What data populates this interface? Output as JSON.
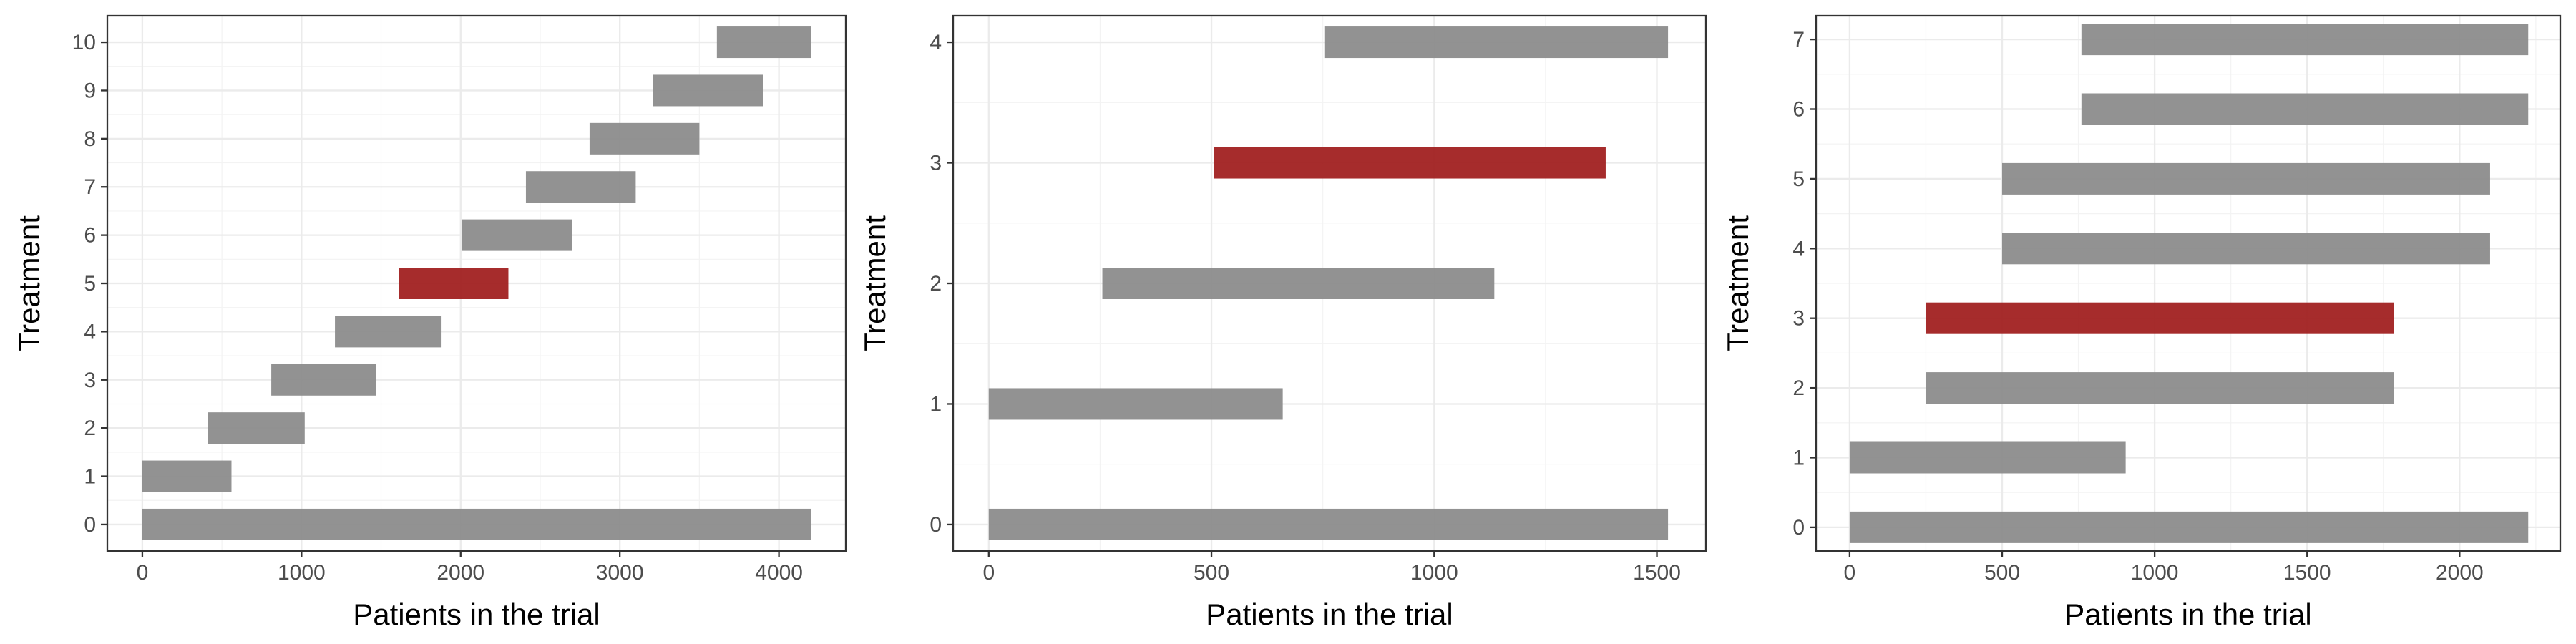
{
  "colors": {
    "default_bar": "#8c8c8c",
    "highlight_bar": "#9e1a1a"
  },
  "chart_data": [
    {
      "type": "bar",
      "orientation": "horizontal-range",
      "title": "",
      "xlabel": "Patients in the trial",
      "ylabel": "Treatment",
      "xlim": [
        -220,
        4420
      ],
      "ylim": [
        -0.55,
        10.55
      ],
      "xticks": [
        0,
        1000,
        2000,
        3000,
        4000
      ],
      "xtick_labels": [
        "0",
        "1000",
        "2000",
        "3000",
        "4000"
      ],
      "grid": true,
      "highlight": 5,
      "bars": [
        {
          "treatment": "0",
          "y": 0,
          "start": 0,
          "end": 4200
        },
        {
          "treatment": "1",
          "y": 1,
          "start": 0,
          "end": 560
        },
        {
          "treatment": "2",
          "y": 2,
          "start": 410,
          "end": 1020
        },
        {
          "treatment": "3",
          "y": 3,
          "start": 810,
          "end": 1470
        },
        {
          "treatment": "4",
          "y": 4,
          "start": 1210,
          "end": 1880
        },
        {
          "treatment": "5",
          "y": 5,
          "start": 1610,
          "end": 2300
        },
        {
          "treatment": "6",
          "y": 6,
          "start": 2010,
          "end": 2700
        },
        {
          "treatment": "7",
          "y": 7,
          "start": 2410,
          "end": 3100
        },
        {
          "treatment": "8",
          "y": 8,
          "start": 2810,
          "end": 3500
        },
        {
          "treatment": "9",
          "y": 9,
          "start": 3210,
          "end": 3900
        },
        {
          "treatment": "10",
          "y": 10,
          "start": 3610,
          "end": 4200
        }
      ]
    },
    {
      "type": "bar",
      "orientation": "horizontal-range",
      "title": "",
      "xlabel": "Patients in the trial",
      "ylabel": "Treatment",
      "xlim": [
        -80,
        1610
      ],
      "ylim": [
        -0.22,
        4.22
      ],
      "xticks": [
        0,
        500,
        1000,
        1500
      ],
      "xtick_labels": [
        "0",
        "500",
        "1000",
        "1500"
      ],
      "grid": true,
      "highlight": 3,
      "bars": [
        {
          "treatment": "0",
          "y": 0,
          "start": 0,
          "end": 1525
        },
        {
          "treatment": "1",
          "y": 1,
          "start": 0,
          "end": 660
        },
        {
          "treatment": "2",
          "y": 2,
          "start": 255,
          "end": 1135
        },
        {
          "treatment": "3",
          "y": 3,
          "start": 505,
          "end": 1385
        },
        {
          "treatment": "4",
          "y": 4,
          "start": 755,
          "end": 1525
        }
      ]
    },
    {
      "type": "bar",
      "orientation": "horizontal-range",
      "title": "",
      "xlabel": "Patients in the trial",
      "ylabel": "Treatment",
      "xlim": [
        -110,
        2330
      ],
      "ylim": [
        -0.34,
        7.34
      ],
      "xticks": [
        0,
        500,
        1000,
        1500,
        2000
      ],
      "xtick_labels": [
        "0",
        "500",
        "1000",
        "1500",
        "2000"
      ],
      "grid": true,
      "highlight": 3,
      "bars": [
        {
          "treatment": "0",
          "y": 0,
          "start": 0,
          "end": 2225
        },
        {
          "treatment": "1",
          "y": 1,
          "start": 0,
          "end": 905
        },
        {
          "treatment": "2",
          "y": 2,
          "start": 250,
          "end": 1785
        },
        {
          "treatment": "3",
          "y": 3,
          "start": 250,
          "end": 1785
        },
        {
          "treatment": "4",
          "y": 4,
          "start": 500,
          "end": 2100
        },
        {
          "treatment": "5",
          "y": 5,
          "start": 500,
          "end": 2100
        },
        {
          "treatment": "6",
          "y": 6,
          "start": 760,
          "end": 2225
        },
        {
          "treatment": "7",
          "y": 7,
          "start": 760,
          "end": 2225
        }
      ]
    }
  ]
}
